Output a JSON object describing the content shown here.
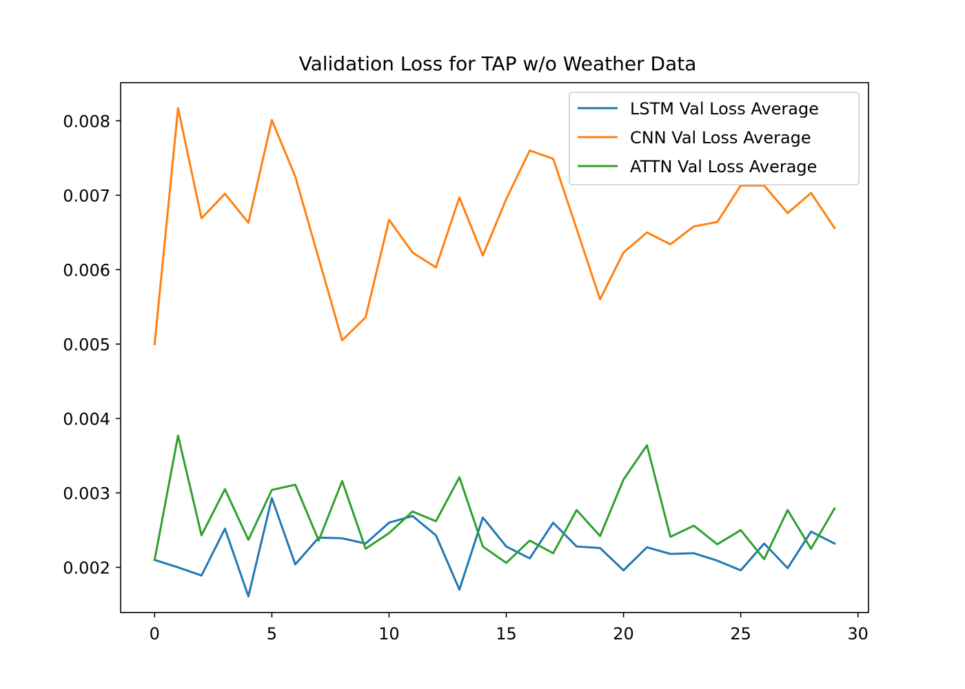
{
  "chart_data": {
    "type": "line",
    "title": "Validation Loss for TAP w/o Weather Data",
    "xlabel": "",
    "ylabel": "",
    "x": [
      0,
      1,
      2,
      3,
      4,
      5,
      6,
      7,
      8,
      9,
      10,
      11,
      12,
      13,
      14,
      15,
      16,
      17,
      18,
      19,
      20,
      21,
      22,
      23,
      24,
      25,
      26,
      27,
      28,
      29
    ],
    "xlim": [
      -1.45,
      30.45
    ],
    "ylim": [
      0.001393,
      0.008512
    ],
    "x_ticks": [
      0,
      5,
      10,
      15,
      20,
      25,
      30
    ],
    "x_tick_labels": [
      "0",
      "5",
      "10",
      "15",
      "20",
      "25",
      "30"
    ],
    "y_ticks": [
      0.002,
      0.003,
      0.004,
      0.005,
      0.006,
      0.007,
      0.008
    ],
    "y_tick_labels": [
      "0.002",
      "0.003",
      "0.004",
      "0.005",
      "0.006",
      "0.007",
      "0.008"
    ],
    "grid": false,
    "legend_position": "top-right",
    "series": [
      {
        "name": "LSTM Val Loss Average",
        "color": "#1f77b4",
        "values": [
          0.0021,
          0.002,
          0.00189,
          0.00252,
          0.00161,
          0.00293,
          0.00204,
          0.0024,
          0.00239,
          0.00232,
          0.0026,
          0.00269,
          0.00243,
          0.0017,
          0.00267,
          0.00228,
          0.00212,
          0.0026,
          0.00228,
          0.00226,
          0.00196,
          0.00227,
          0.00218,
          0.00219,
          0.00209,
          0.00196,
          0.00232,
          0.00199,
          0.00248,
          0.00232
        ]
      },
      {
        "name": "CNN Val Loss Average",
        "color": "#ff7f0e",
        "values": [
          0.005,
          0.00817,
          0.00669,
          0.00702,
          0.00663,
          0.00801,
          0.00725,
          0.00615,
          0.00505,
          0.00536,
          0.00667,
          0.00623,
          0.00603,
          0.00697,
          0.00619,
          0.00695,
          0.0076,
          0.00749,
          0.00655,
          0.0056,
          0.00623,
          0.0065,
          0.00634,
          0.00658,
          0.00664,
          0.00713,
          0.00713,
          0.00676,
          0.00703,
          0.00656
        ]
      },
      {
        "name": "ATTN Val Loss Average",
        "color": "#2ca02c",
        "values": [
          0.0021,
          0.00377,
          0.00243,
          0.00305,
          0.00237,
          0.00304,
          0.00311,
          0.00236,
          0.00316,
          0.00225,
          0.00246,
          0.00275,
          0.00262,
          0.00321,
          0.00228,
          0.00206,
          0.00236,
          0.00219,
          0.00277,
          0.00242,
          0.00318,
          0.00364,
          0.00241,
          0.00256,
          0.00231,
          0.0025,
          0.00211,
          0.00277,
          0.00225,
          0.00279
        ]
      }
    ]
  }
}
